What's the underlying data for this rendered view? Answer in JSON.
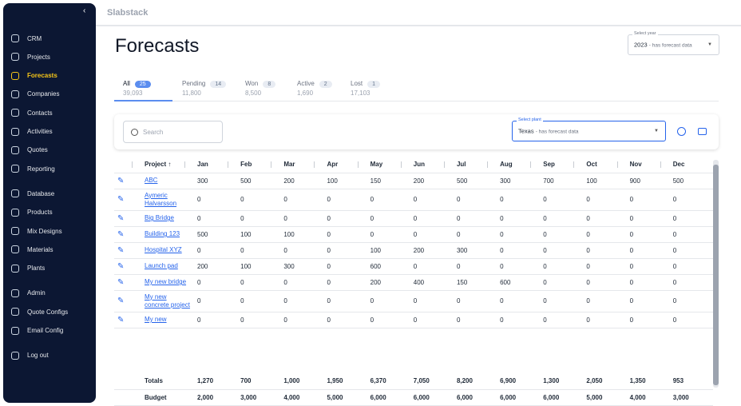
{
  "sidebar": {
    "groups": [
      [
        {
          "label": "CRM"
        },
        {
          "label": "Projects"
        },
        {
          "label": "Forecasts",
          "active": true
        },
        {
          "label": "Companies"
        },
        {
          "label": "Contacts"
        },
        {
          "label": "Activities"
        },
        {
          "label": "Quotes"
        },
        {
          "label": "Reporting"
        }
      ],
      [
        {
          "label": "Database"
        },
        {
          "label": "Products"
        },
        {
          "label": "Mix Designs"
        },
        {
          "label": "Materials"
        },
        {
          "label": "Plants"
        }
      ],
      [
        {
          "label": "Admin"
        },
        {
          "label": "Quote Configs"
        },
        {
          "label": "Email Config"
        }
      ],
      [
        {
          "label": "Log out"
        }
      ]
    ]
  },
  "header": {
    "logo": "Slabstack"
  },
  "page": {
    "title": "Forecasts",
    "year_select": {
      "label": "Select year",
      "value": "2023",
      "hint": "- has forecast data"
    },
    "tabs": [
      {
        "label": "All",
        "count": "25",
        "total": "39,093",
        "active": true
      },
      {
        "label": "Pending",
        "count": "14",
        "total": "11,800"
      },
      {
        "label": "Won",
        "count": "8",
        "total": "8,500"
      },
      {
        "label": "Active",
        "count": "2",
        "total": "1,690"
      },
      {
        "label": "Lost",
        "count": "1",
        "total": "17,103"
      }
    ],
    "search": {
      "placeholder": "Search"
    },
    "plant_select": {
      "label": "Select plant",
      "value": "Texas",
      "hint": "- has forecast data"
    }
  },
  "table": {
    "columns": [
      "Project ↑",
      "Jan",
      "Feb",
      "Mar",
      "Apr",
      "May",
      "Jun",
      "Jul",
      "Aug",
      "Sep",
      "Oct",
      "Nov",
      "Dec"
    ],
    "rows": [
      {
        "project": "ABC",
        "values": [
          "300",
          "500",
          "200",
          "100",
          "150",
          "200",
          "500",
          "300",
          "700",
          "100",
          "900",
          "500"
        ]
      },
      {
        "project": "Aymeric Halvarsson",
        "values": [
          "0",
          "0",
          "0",
          "0",
          "0",
          "0",
          "0",
          "0",
          "0",
          "0",
          "0",
          "0"
        ]
      },
      {
        "project": "Big Bridge",
        "values": [
          "0",
          "0",
          "0",
          "0",
          "0",
          "0",
          "0",
          "0",
          "0",
          "0",
          "0",
          "0"
        ]
      },
      {
        "project": "Building 123",
        "values": [
          "500",
          "100",
          "100",
          "0",
          "0",
          "0",
          "0",
          "0",
          "0",
          "0",
          "0",
          "0"
        ]
      },
      {
        "project": "Hospital XYZ",
        "values": [
          "0",
          "0",
          "0",
          "0",
          "100",
          "200",
          "300",
          "0",
          "0",
          "0",
          "0",
          "0"
        ]
      },
      {
        "project": "Launch pad",
        "values": [
          "200",
          "100",
          "300",
          "0",
          "600",
          "0",
          "0",
          "0",
          "0",
          "0",
          "0",
          "0"
        ]
      },
      {
        "project": "My new bridge",
        "values": [
          "0",
          "0",
          "0",
          "0",
          "200",
          "400",
          "150",
          "600",
          "0",
          "0",
          "0",
          "0"
        ]
      },
      {
        "project": "My new concrete project",
        "values": [
          "0",
          "0",
          "0",
          "0",
          "0",
          "0",
          "0",
          "0",
          "0",
          "0",
          "0",
          "0"
        ]
      },
      {
        "project": "My new",
        "values": [
          "0",
          "0",
          "0",
          "0",
          "0",
          "0",
          "0",
          "0",
          "0",
          "0",
          "0",
          "0"
        ]
      }
    ],
    "totals": {
      "label": "Totals",
      "values": [
        "1,270",
        "700",
        "1,000",
        "1,950",
        "6,370",
        "7,050",
        "8,200",
        "6,900",
        "1,300",
        "2,050",
        "1,350",
        "953"
      ]
    },
    "budget": {
      "label": "Budget",
      "values": [
        "2,000",
        "3,000",
        "4,000",
        "5,000",
        "6,000",
        "6,000",
        "6,000",
        "6,000",
        "6,000",
        "5,000",
        "4,000",
        "3,000"
      ]
    }
  }
}
